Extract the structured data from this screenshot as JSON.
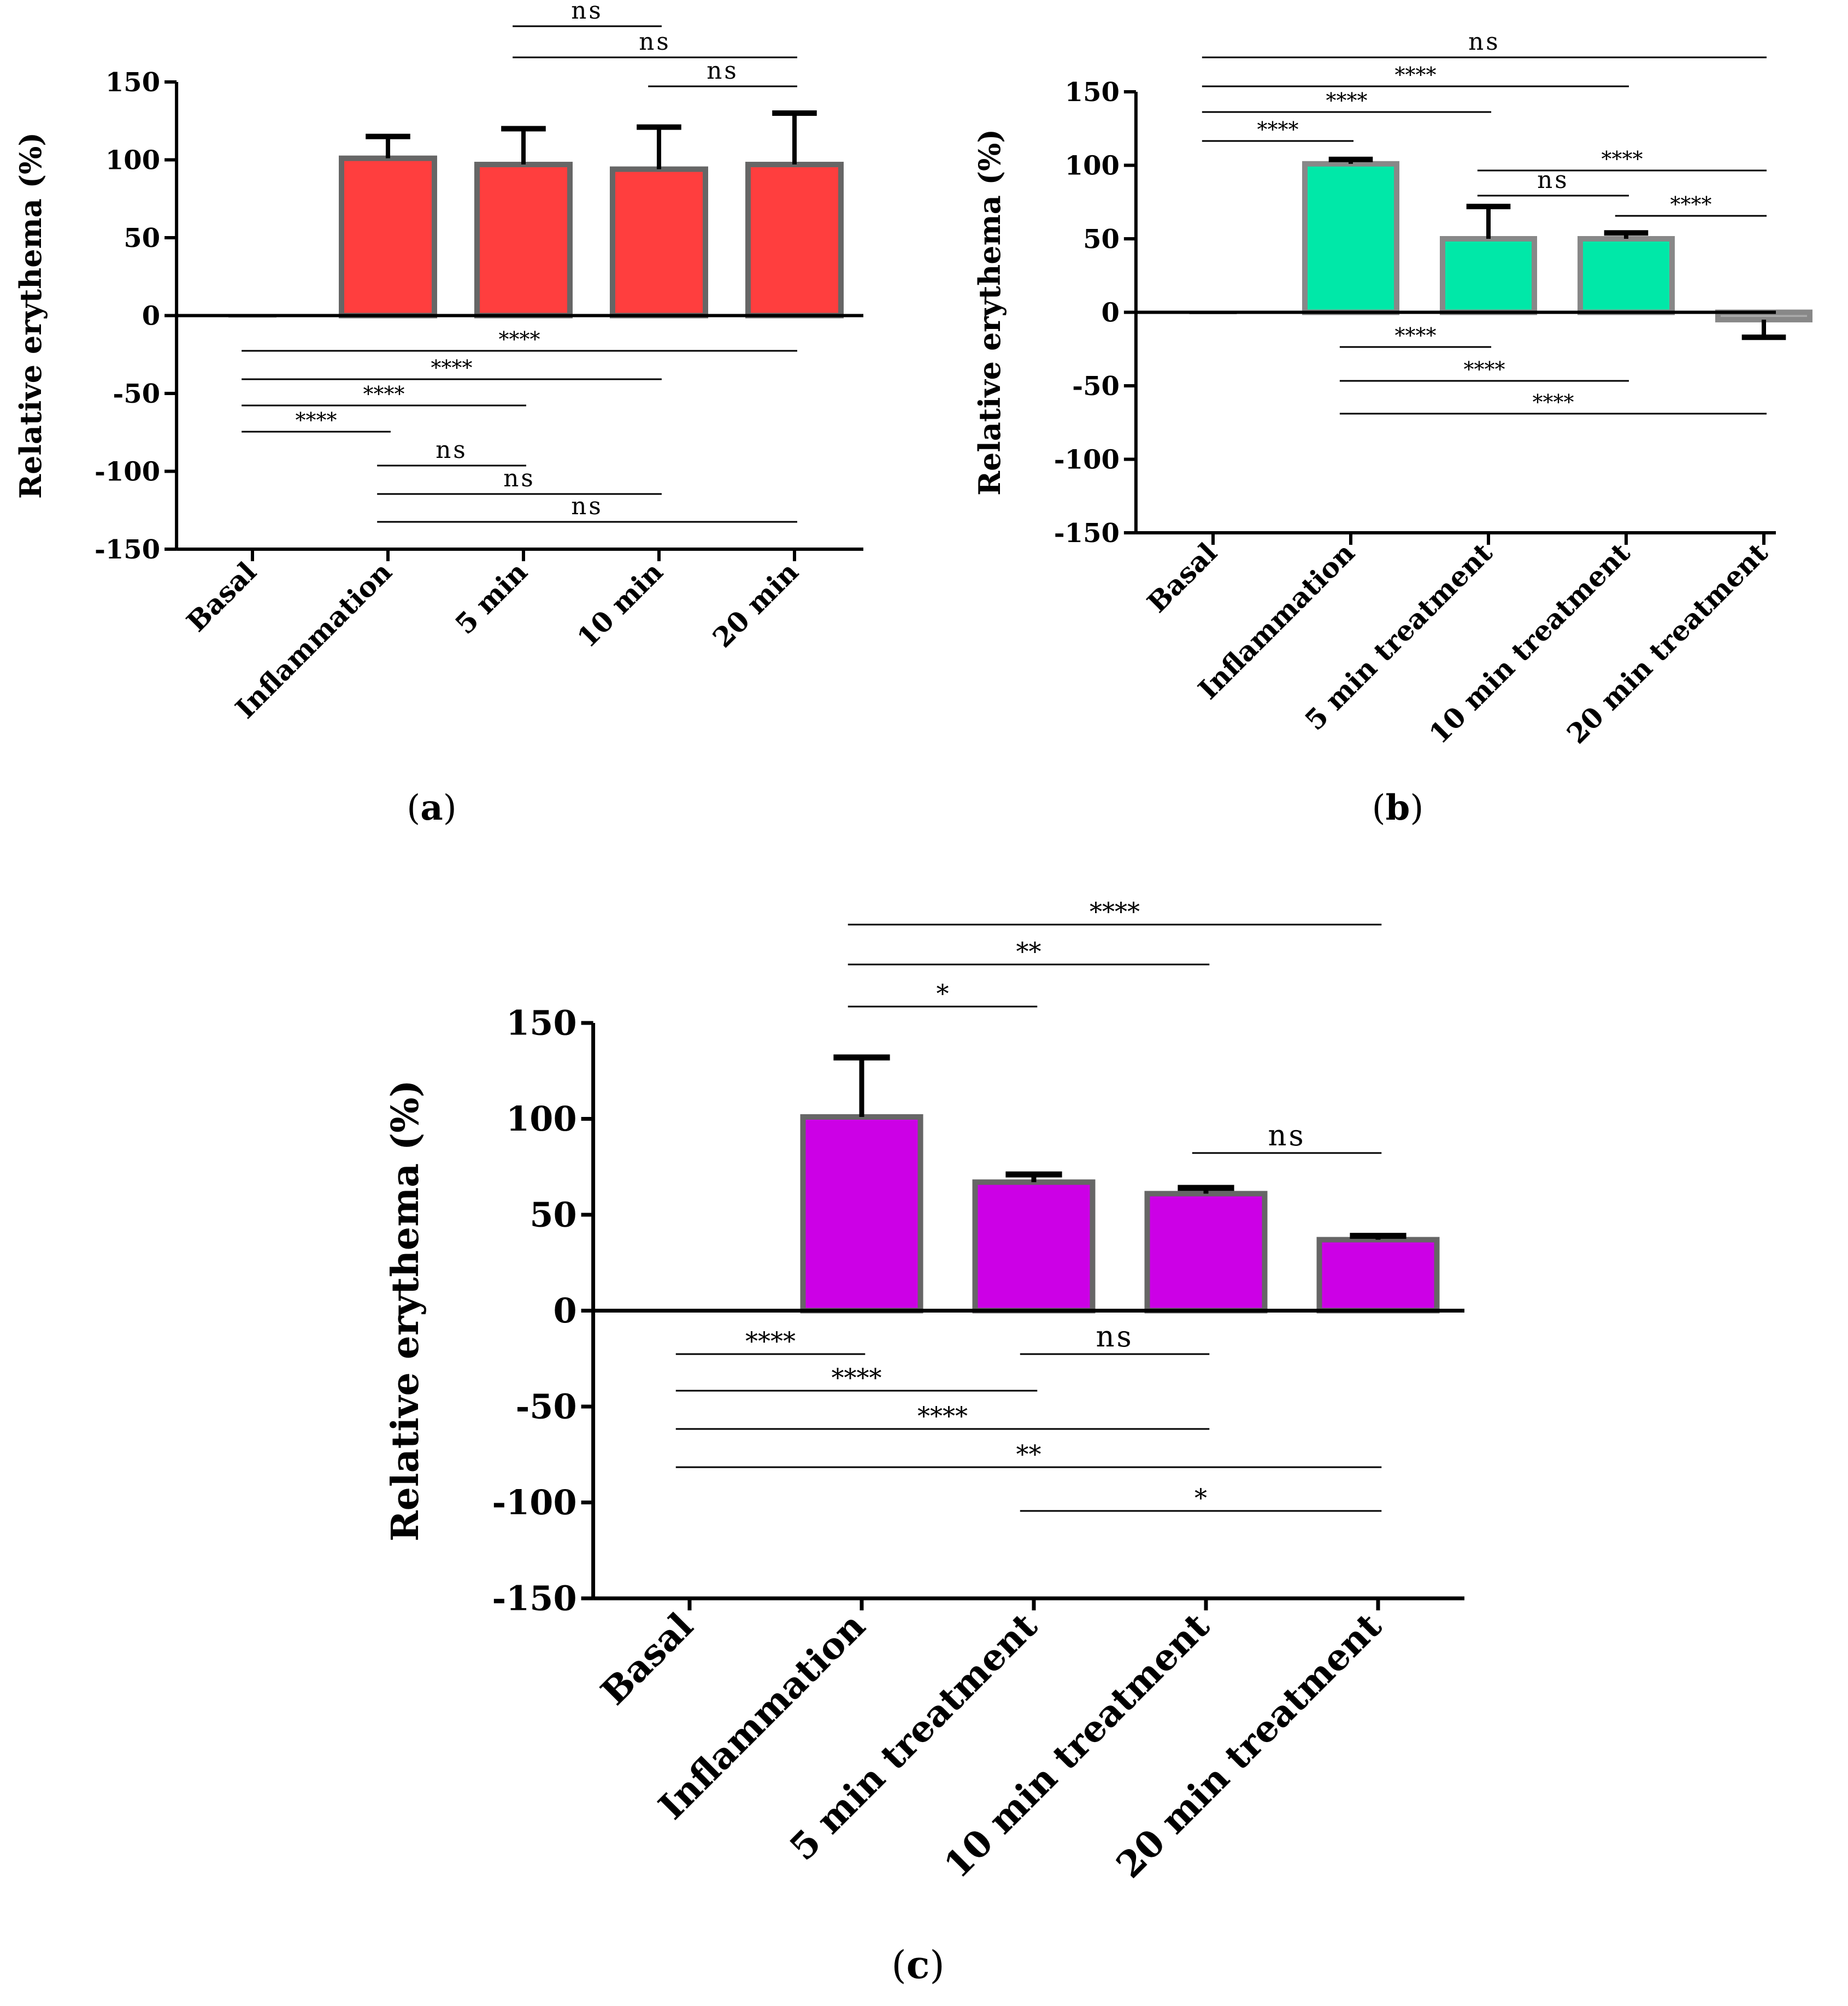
{
  "chart_data": [
    {
      "type": "bar",
      "panel": "a",
      "caption_letter": "a",
      "categories": [
        "Basal",
        "Inflammation",
        "5 min",
        "10 min",
        "20 min"
      ],
      "values": [
        0,
        101,
        97,
        94,
        97
      ],
      "errors": [
        0,
        14,
        23,
        27,
        33
      ],
      "ylabel": "Relative erythema (%)",
      "ylim": [
        -150,
        150
      ],
      "yticks": [
        150,
        100,
        50,
        0,
        -50,
        -100,
        -150
      ],
      "bar_color": "#ff3e3e",
      "edge_color": "#666666",
      "significance": [
        {
          "from": 2,
          "to": 3,
          "label": "ns",
          "side": "above",
          "level": 0
        },
        {
          "from": 2,
          "to": 4,
          "label": "ns",
          "side": "above",
          "level": 1
        },
        {
          "from": 3,
          "to": 4,
          "label": "ns",
          "side": "above",
          "level": 2
        },
        {
          "from": 0,
          "to": 4,
          "label": "****",
          "side": "below",
          "level": 0
        },
        {
          "from": 0,
          "to": 3,
          "label": "****",
          "side": "below",
          "level": 1
        },
        {
          "from": 0,
          "to": 2,
          "label": "****",
          "side": "below",
          "level": 2
        },
        {
          "from": 0,
          "to": 1,
          "label": "****",
          "side": "below",
          "level": 3
        },
        {
          "from": 1,
          "to": 2,
          "label": "ns",
          "side": "below",
          "level": 4
        },
        {
          "from": 1,
          "to": 3,
          "label": "ns",
          "side": "below",
          "level": 5
        },
        {
          "from": 1,
          "to": 4,
          "label": "ns",
          "side": "below",
          "level": 6
        }
      ]
    },
    {
      "type": "bar",
      "panel": "b",
      "caption_letter": "b",
      "categories": [
        "Basal",
        "Inflammation",
        "5 min treatment",
        "10 min treatment",
        "20 min treatment"
      ],
      "values": [
        0,
        101,
        50,
        50,
        -5
      ],
      "errors": [
        0,
        3,
        22,
        4,
        12
      ],
      "ylabel": "Relative erythema (%)",
      "ylim": [
        -150,
        150
      ],
      "yticks": [
        150,
        100,
        50,
        0,
        -50,
        -100,
        -150
      ],
      "bar_color": "#00e8a8",
      "edge_color": "#888888",
      "significance": [
        {
          "from": 0,
          "to": 4,
          "label": "ns",
          "side": "above",
          "level": 0
        },
        {
          "from": 0,
          "to": 3,
          "label": "****",
          "side": "above",
          "level": 1
        },
        {
          "from": 0,
          "to": 2,
          "label": "****",
          "side": "above",
          "level": 2
        },
        {
          "from": 0,
          "to": 1,
          "label": "****",
          "side": "above",
          "level": 3
        },
        {
          "from": 2,
          "to": 4,
          "label": "****",
          "side": "above",
          "level": 4
        },
        {
          "from": 2,
          "to": 3,
          "label": "ns",
          "side": "above",
          "level": 5
        },
        {
          "from": 3,
          "to": 4,
          "label": "****",
          "side": "above",
          "level": 6
        },
        {
          "from": 1,
          "to": 2,
          "label": "****",
          "side": "below",
          "level": 0
        },
        {
          "from": 1,
          "to": 3,
          "label": "****",
          "side": "below",
          "level": 1
        },
        {
          "from": 1,
          "to": 4,
          "label": "****",
          "side": "below",
          "level": 2
        }
      ]
    },
    {
      "type": "bar",
      "panel": "c",
      "caption_letter": "c",
      "categories": [
        "Basal",
        "Inflammation",
        "5 min treatment",
        "10 min treatment",
        "20 min treatment"
      ],
      "values": [
        0,
        101,
        67,
        61,
        37
      ],
      "errors": [
        0,
        31,
        4,
        3,
        2
      ],
      "ylabel": "Relative erythema (%)",
      "ylim": [
        -150,
        150
      ],
      "yticks": [
        150,
        100,
        50,
        0,
        -50,
        -100,
        -150
      ],
      "bar_color": "#cc00e6",
      "edge_color": "#666666",
      "significance": [
        {
          "from": 1,
          "to": 4,
          "label": "****",
          "side": "above",
          "level": 0
        },
        {
          "from": 1,
          "to": 3,
          "label": "**",
          "side": "above",
          "level": 1
        },
        {
          "from": 1,
          "to": 2,
          "label": "*",
          "side": "above",
          "level": 2
        },
        {
          "from": 3,
          "to": 4,
          "label": "ns",
          "side": "above",
          "level": 3
        },
        {
          "from": 0,
          "to": 1,
          "label": "****",
          "side": "below",
          "level": 0
        },
        {
          "from": 2,
          "to": 3,
          "label": "ns",
          "side": "below",
          "level": 1
        },
        {
          "from": 0,
          "to": 2,
          "label": "****",
          "side": "below",
          "level": 2
        },
        {
          "from": 0,
          "to": 3,
          "label": "****",
          "side": "below",
          "level": 3
        },
        {
          "from": 0,
          "to": 4,
          "label": "**",
          "side": "below",
          "level": 4
        },
        {
          "from": 2,
          "to": 4,
          "label": "*",
          "side": "below",
          "level": 5
        }
      ]
    }
  ]
}
